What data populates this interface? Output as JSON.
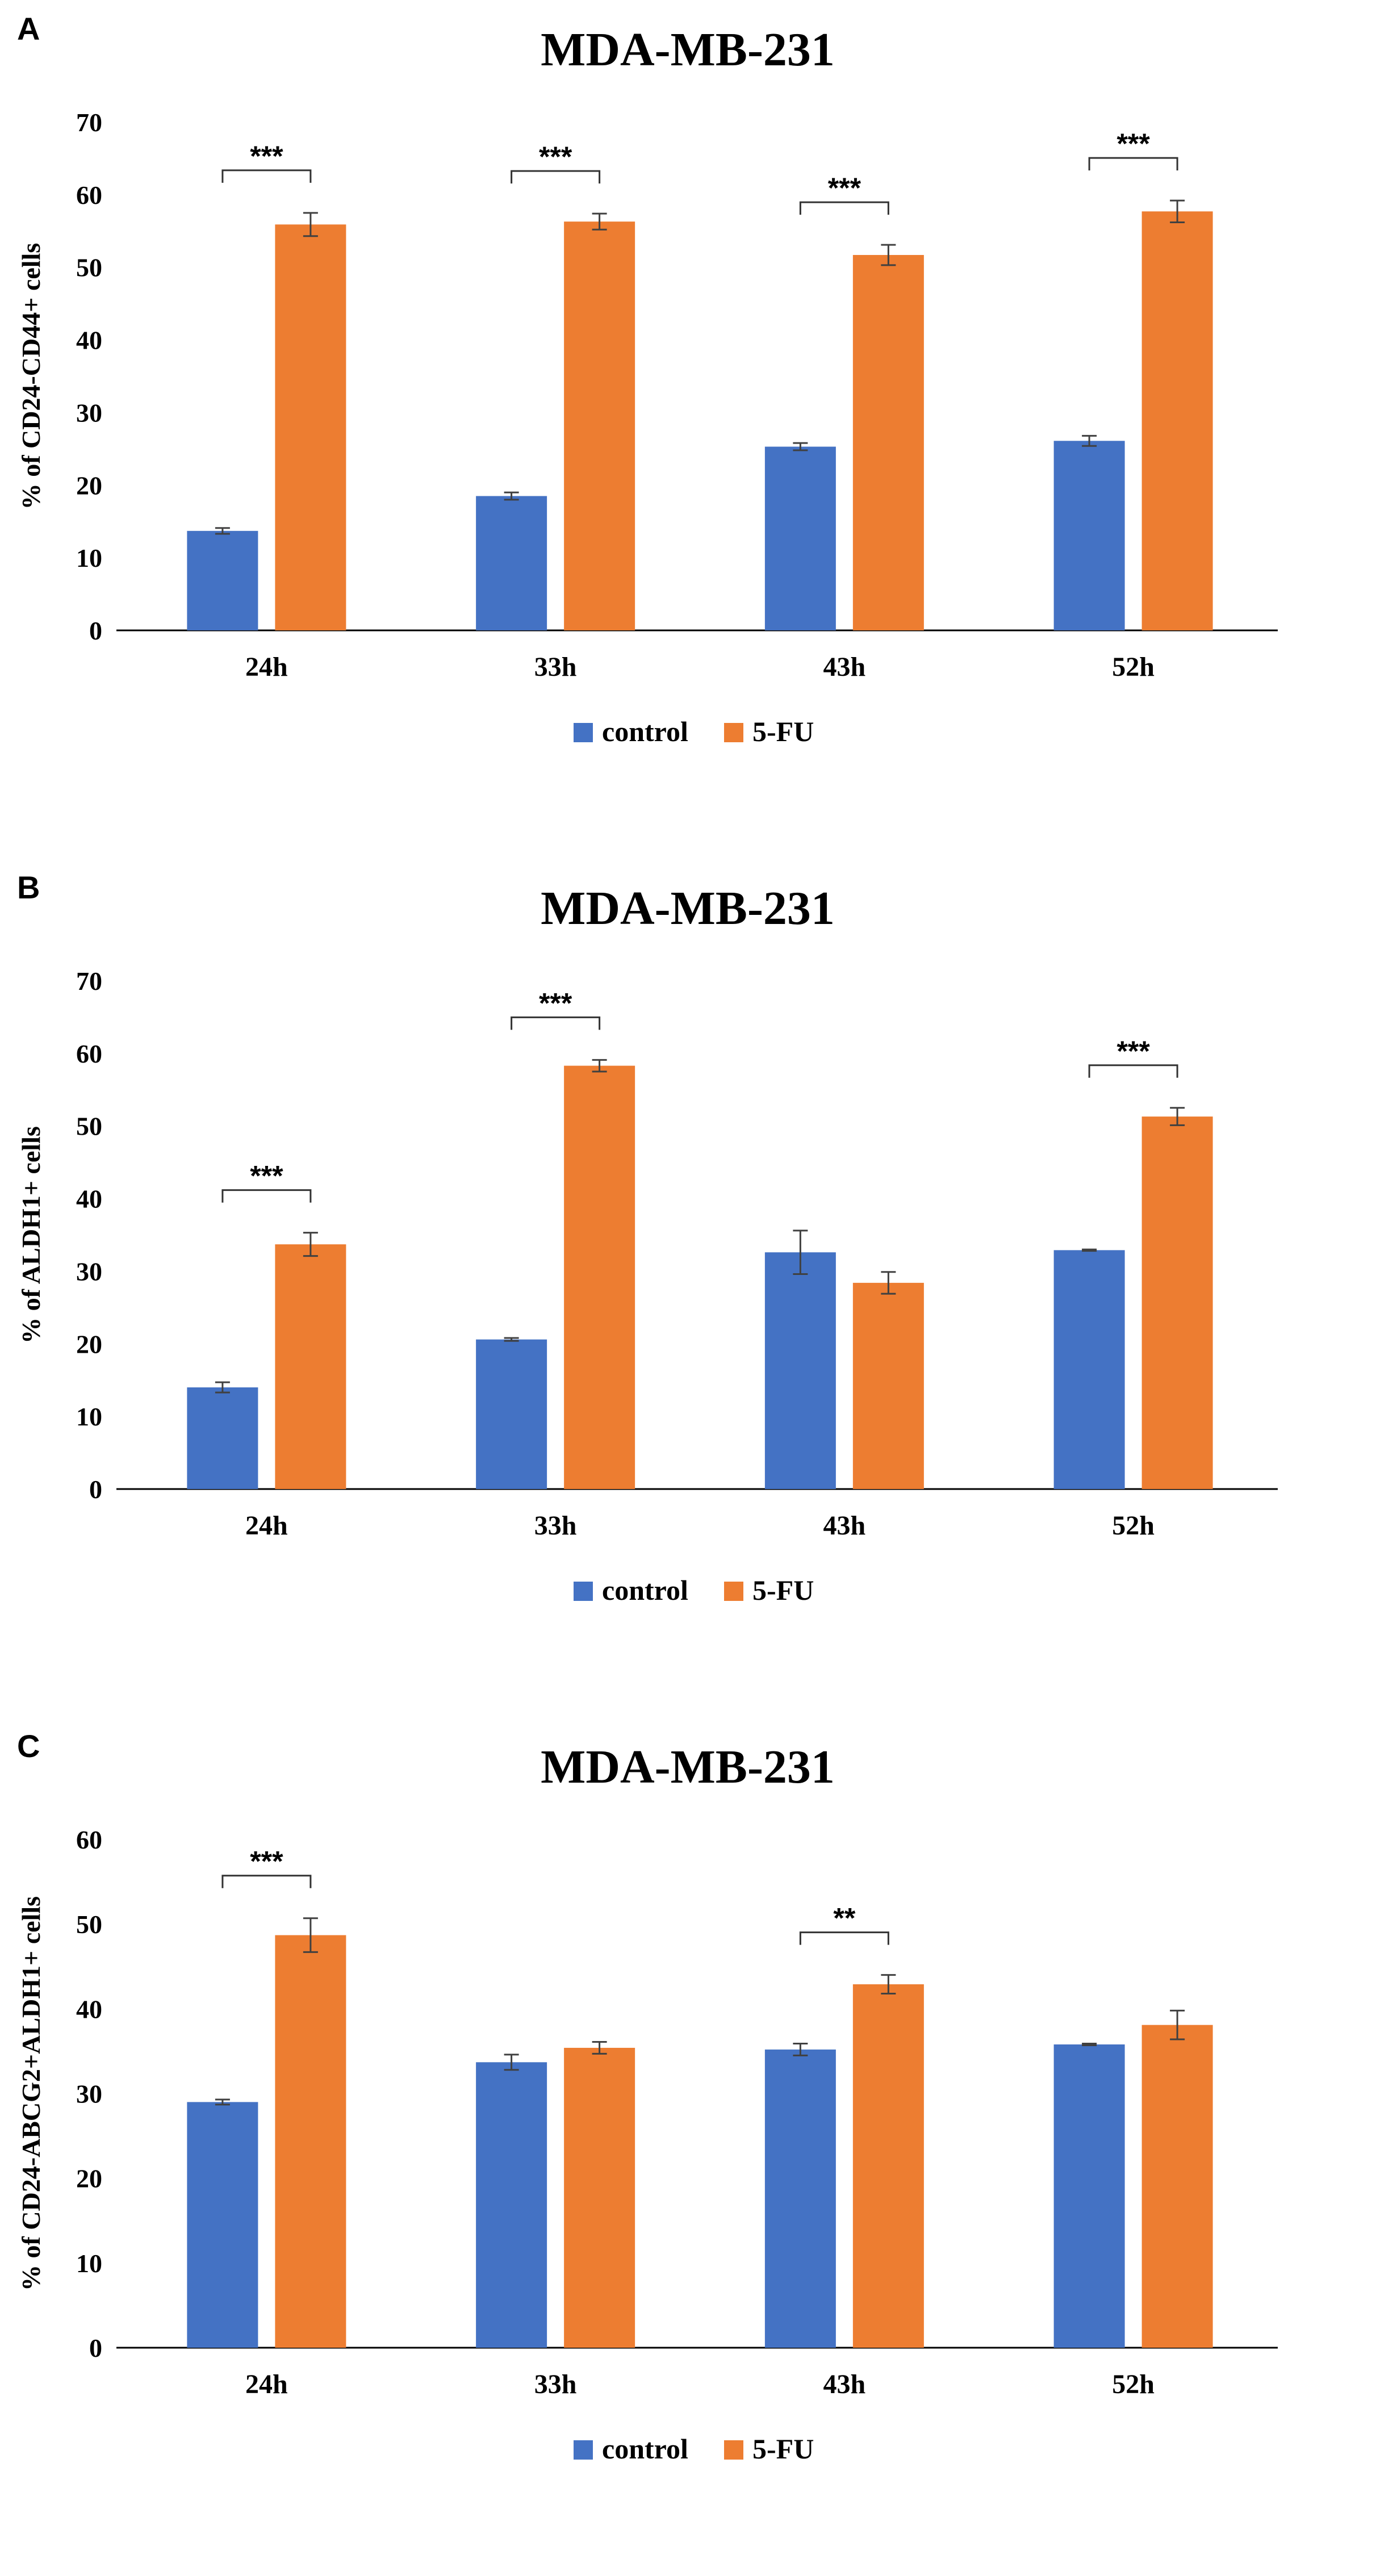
{
  "colors": {
    "control": "#4472C4",
    "fu": "#ED7D31",
    "axis": "#000000",
    "error": "#404040"
  },
  "chart_data": [
    {
      "type": "bar",
      "panel": "A",
      "title": "MDA-MB-231",
      "ylabel": "% of CD24-CD44+ cells",
      "xlabel": "",
      "ylim": [
        0,
        70
      ],
      "yticks": [
        0,
        10,
        20,
        30,
        40,
        50,
        60,
        70
      ],
      "categories": [
        "24h",
        "33h",
        "43h",
        "52h"
      ],
      "series": [
        {
          "name": "control",
          "values": [
            13.7,
            18.5,
            25.3,
            26.1
          ],
          "errors": [
            0.4,
            0.5,
            0.5,
            0.7
          ]
        },
        {
          "name": "5-FU",
          "values": [
            55.9,
            56.3,
            51.7,
            57.7
          ],
          "errors": [
            1.6,
            1.1,
            1.4,
            1.5
          ]
        }
      ],
      "significance": [
        "***",
        "***",
        "***",
        "***"
      ],
      "legend": {
        "position": "bottom",
        "entries": [
          "control",
          "5-FU"
        ]
      },
      "grid": false
    },
    {
      "type": "bar",
      "panel": "B",
      "title": "MDA-MB-231",
      "ylabel": "% of ALDH1+ cells",
      "xlabel": "",
      "ylim": [
        0,
        70
      ],
      "yticks": [
        0,
        10,
        20,
        30,
        40,
        50,
        60,
        70
      ],
      "categories": [
        "24h",
        "33h",
        "43h",
        "52h"
      ],
      "series": [
        {
          "name": "control",
          "values": [
            14.0,
            20.6,
            32.6,
            32.9
          ],
          "errors": [
            0.7,
            0.2,
            3.0,
            0.1
          ]
        },
        {
          "name": "5-FU",
          "values": [
            33.7,
            58.3,
            28.4,
            51.3
          ],
          "errors": [
            1.6,
            0.8,
            1.5,
            1.2
          ]
        }
      ],
      "significance": [
        "***",
        "***",
        "",
        "***"
      ],
      "legend": {
        "position": "bottom",
        "entries": [
          "control",
          "5-FU"
        ]
      },
      "grid": false
    },
    {
      "type": "bar",
      "panel": "C",
      "title": "MDA-MB-231",
      "ylabel": "% of CD24-ABCG2+ALDH1+ cells",
      "xlabel": "",
      "ylim": [
        0,
        60
      ],
      "yticks": [
        0,
        10,
        20,
        30,
        40,
        50,
        60
      ],
      "categories": [
        "24h",
        "33h",
        "43h",
        "52h"
      ],
      "series": [
        {
          "name": "control",
          "values": [
            29.0,
            33.7,
            35.2,
            35.8
          ],
          "errors": [
            0.3,
            0.9,
            0.7,
            0.1
          ]
        },
        {
          "name": "5-FU",
          "values": [
            48.7,
            35.4,
            42.9,
            38.1
          ],
          "errors": [
            2.0,
            0.7,
            1.1,
            1.7
          ]
        }
      ],
      "significance": [
        "***",
        "",
        "**",
        ""
      ],
      "legend": {
        "position": "bottom",
        "entries": [
          "control",
          "5-FU"
        ]
      },
      "grid": false
    }
  ]
}
